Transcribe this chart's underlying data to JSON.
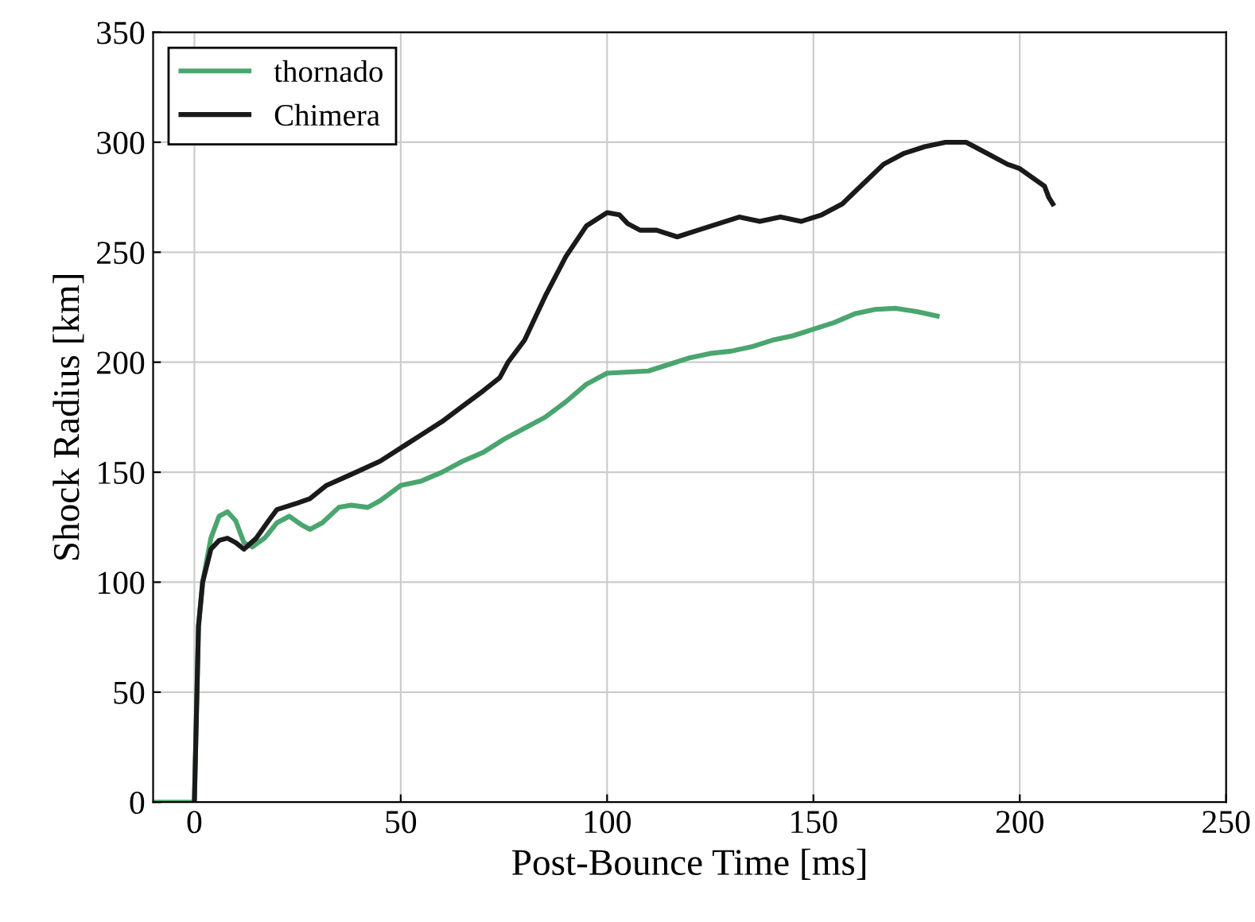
{
  "chart_data": {
    "type": "line",
    "xlabel": "Post-Bounce Time [ms]",
    "ylabel": "Shock Radius [km]",
    "xlim": [
      -10,
      250
    ],
    "ylim": [
      0,
      350
    ],
    "xticks": [
      0,
      50,
      100,
      150,
      200,
      250
    ],
    "yticks": [
      0,
      50,
      100,
      150,
      200,
      250,
      300,
      350
    ],
    "grid": true,
    "legend": "top left",
    "marker": "none",
    "line_style": "solid",
    "series": [
      {
        "name": "thornado",
        "color": "#4aa56f",
        "x": [
          -10,
          0,
          0.5,
          1,
          2,
          4,
          6,
          8,
          10,
          12,
          14,
          17,
          20,
          23,
          26,
          28,
          31,
          35,
          38,
          42,
          45,
          50,
          55,
          60,
          65,
          70,
          75,
          80,
          85,
          90,
          95,
          100,
          110,
          115,
          120,
          125,
          130,
          135,
          140,
          145,
          150,
          155,
          160,
          165,
          170,
          175,
          180
        ],
        "values": [
          0,
          0,
          40,
          80,
          100,
          120,
          130,
          132,
          128,
          118,
          116,
          120,
          127,
          130,
          126,
          124,
          127,
          134,
          135,
          134,
          137,
          144,
          146,
          150,
          155,
          159,
          165,
          170,
          175,
          182,
          190,
          195,
          196,
          199,
          202,
          204,
          205,
          207,
          210,
          212,
          215,
          218,
          222,
          224,
          224.5,
          223,
          221
        ]
      },
      {
        "name": "Chimera",
        "color": "#1a1a1a",
        "x": [
          0,
          0.5,
          1,
          2,
          4,
          6,
          8,
          10,
          12,
          15,
          18,
          20,
          25,
          28,
          32,
          38,
          45,
          50,
          55,
          60,
          65,
          70,
          74,
          76,
          80,
          85,
          90,
          95,
          100,
          103,
          105,
          108,
          112,
          117,
          122,
          127,
          132,
          137,
          142,
          147,
          152,
          157,
          162,
          167,
          172,
          177,
          182,
          187,
          192,
          197,
          200,
          203,
          206,
          207,
          208
        ],
        "values": [
          0,
          40,
          80,
          100,
          115,
          119,
          120,
          118,
          115,
          120,
          128,
          133,
          136,
          138,
          144,
          149,
          155,
          161,
          167,
          173,
          180,
          187,
          193,
          200,
          210,
          230,
          248,
          262,
          268,
          267,
          263,
          260,
          260,
          257,
          260,
          263,
          266,
          264,
          266,
          264,
          267,
          272,
          281,
          290,
          295,
          298,
          300,
          300,
          295,
          290,
          288,
          284,
          280,
          275,
          272
        ]
      }
    ]
  }
}
